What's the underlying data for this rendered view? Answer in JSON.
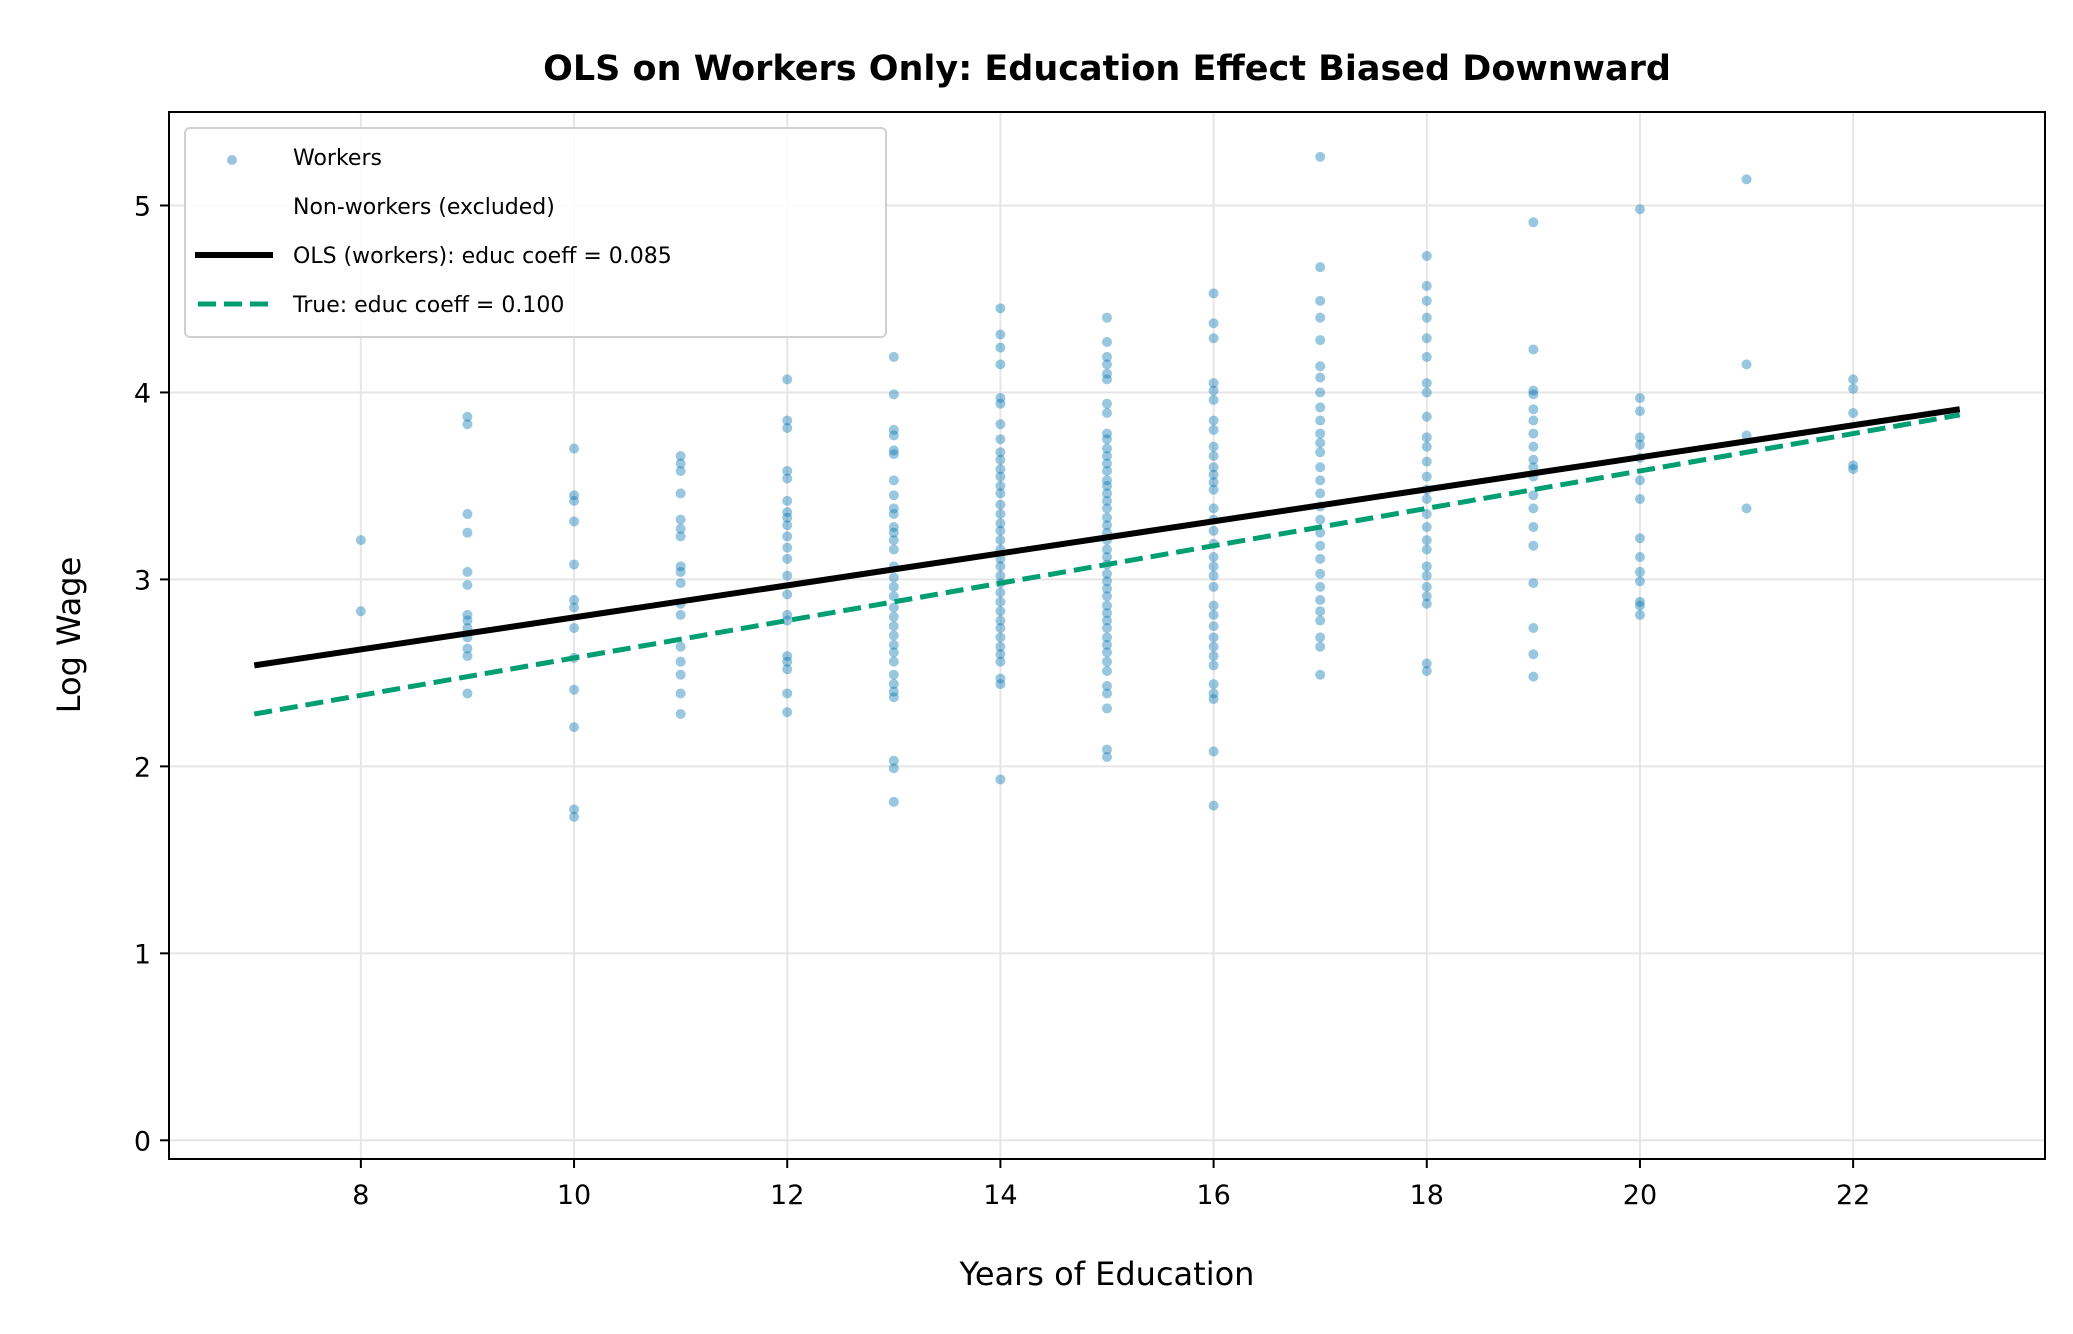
{
  "chart_data": {
    "type": "scatter",
    "title": "OLS on Workers Only: Education Effect Biased Downward",
    "xlabel": "Years of Education",
    "ylabel": "Log Wage",
    "xlim": [
      6.2,
      23.8
    ],
    "ylim": [
      -0.1,
      5.5
    ],
    "xticks": [
      8,
      10,
      12,
      14,
      16,
      18,
      20,
      22
    ],
    "yticks": [
      0,
      1,
      2,
      3,
      4,
      5
    ],
    "grid": true,
    "legend_placement": "top-left",
    "legend": [
      {
        "label": "Workers",
        "kind": "marker",
        "color": "#0072B2"
      },
      {
        "label": "Non-workers (excluded)",
        "kind": "none"
      },
      {
        "label": "OLS (workers): educ coeff = 0.085",
        "kind": "solid",
        "color": "#000000"
      },
      {
        "label": "True: educ coeff = 0.100",
        "kind": "dashed",
        "color": "#009E73"
      }
    ],
    "lines": [
      {
        "name": "OLS (workers)",
        "x": [
          7,
          23
        ],
        "y": [
          2.54,
          3.91
        ],
        "color": "#000000",
        "style": "solid"
      },
      {
        "name": "True",
        "x": [
          7,
          23
        ],
        "y": [
          2.28,
          3.88
        ],
        "color": "#009E73",
        "style": "dashed"
      }
    ],
    "series": [
      {
        "name": "Workers",
        "color": "#0072B2",
        "points_by_x": {
          "8": [
            3.21,
            2.83
          ],
          "9": [
            3.87,
            3.83,
            3.35,
            3.25,
            3.04,
            2.97,
            2.81,
            2.78,
            2.74,
            2.69,
            2.63,
            2.59,
            2.39
          ],
          "10": [
            3.7,
            3.45,
            3.42,
            3.31,
            3.08,
            2.89,
            2.85,
            2.74,
            2.58,
            2.41,
            2.21,
            1.77,
            1.73
          ],
          "11": [
            3.66,
            3.62,
            3.58,
            3.46,
            3.32,
            3.27,
            3.23,
            3.07,
            3.04,
            2.98,
            2.87,
            2.81,
            2.64,
            2.56,
            2.49,
            2.39,
            2.28
          ],
          "12": [
            4.07,
            3.85,
            3.81,
            3.58,
            3.54,
            3.42,
            3.36,
            3.33,
            3.29,
            3.23,
            3.17,
            3.11,
            3.02,
            2.92,
            2.81,
            2.78,
            2.59,
            2.56,
            2.52,
            2.39,
            2.29
          ],
          "13": [
            4.19,
            3.99,
            3.8,
            3.77,
            3.69,
            3.67,
            3.53,
            3.45,
            3.38,
            3.35,
            3.28,
            3.25,
            3.21,
            3.16,
            3.07,
            3.01,
            2.96,
            2.91,
            2.85,
            2.8,
            2.75,
            2.7,
            2.65,
            2.61,
            2.56,
            2.49,
            2.44,
            2.4,
            2.37,
            2.03,
            1.99,
            1.81
          ],
          "14": [
            4.45,
            4.31,
            4.24,
            4.15,
            3.97,
            3.94,
            3.83,
            3.75,
            3.68,
            3.64,
            3.59,
            3.55,
            3.5,
            3.46,
            3.4,
            3.35,
            3.3,
            3.26,
            3.21,
            3.16,
            3.11,
            3.07,
            3.02,
            2.98,
            2.93,
            2.88,
            2.83,
            2.78,
            2.74,
            2.69,
            2.64,
            2.6,
            2.56,
            2.47,
            2.44,
            1.93
          ],
          "15": [
            4.4,
            4.27,
            4.19,
            4.15,
            4.1,
            4.07,
            3.94,
            3.89,
            3.78,
            3.75,
            3.7,
            3.66,
            3.62,
            3.58,
            3.53,
            3.5,
            3.46,
            3.42,
            3.38,
            3.33,
            3.29,
            3.25,
            3.21,
            3.16,
            3.12,
            3.08,
            3.03,
            2.99,
            2.95,
            2.91,
            2.86,
            2.82,
            2.78,
            2.74,
            2.69,
            2.65,
            2.61,
            2.56,
            2.51,
            2.43,
            2.39,
            2.31,
            2.09,
            2.05
          ],
          "16": [
            4.53,
            4.37,
            4.29,
            4.05,
            4.01,
            3.96,
            3.85,
            3.8,
            3.71,
            3.66,
            3.6,
            3.56,
            3.52,
            3.48,
            3.38,
            3.32,
            3.26,
            3.19,
            3.12,
            3.07,
            3.02,
            2.96,
            2.86,
            2.81,
            2.75,
            2.69,
            2.64,
            2.59,
            2.54,
            2.44,
            2.39,
            2.36,
            2.08,
            1.79
          ],
          "17": [
            5.26,
            4.67,
            4.49,
            4.4,
            4.28,
            4.14,
            4.08,
            4.0,
            3.92,
            3.85,
            3.78,
            3.73,
            3.68,
            3.6,
            3.53,
            3.46,
            3.39,
            3.32,
            3.25,
            3.18,
            3.11,
            3.03,
            2.96,
            2.89,
            2.83,
            2.78,
            2.69,
            2.64,
            2.49
          ],
          "18": [
            4.73,
            4.57,
            4.49,
            4.4,
            4.29,
            4.19,
            4.05,
            4.0,
            3.87,
            3.76,
            3.71,
            3.63,
            3.55,
            3.48,
            3.43,
            3.35,
            3.28,
            3.21,
            3.16,
            3.07,
            3.02,
            2.96,
            2.91,
            2.87,
            2.55,
            2.51
          ],
          "19": [
            4.91,
            4.23,
            4.01,
            3.99,
            3.91,
            3.85,
            3.78,
            3.71,
            3.64,
            3.6,
            3.55,
            3.45,
            3.38,
            3.28,
            3.18,
            2.98,
            2.74,
            2.6,
            2.48
          ],
          "20": [
            4.98,
            3.97,
            3.9,
            3.76,
            3.72,
            3.65,
            3.53,
            3.43,
            3.22,
            3.12,
            3.04,
            2.99,
            2.88,
            2.86,
            2.81
          ],
          "21": [
            5.14,
            4.15,
            3.77,
            3.38
          ],
          "22": [
            4.07,
            4.02,
            3.89,
            3.61,
            3.59
          ]
        }
      }
    ]
  }
}
